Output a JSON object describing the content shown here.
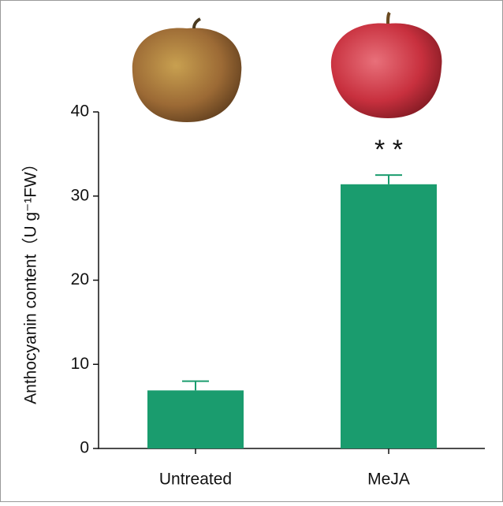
{
  "chart_data": {
    "type": "bar",
    "y_label": "Anthocyanin content（U g⁻¹FW）",
    "categories": [
      "Untreated",
      "MeJA"
    ],
    "values": [
      6.9,
      31.4
    ],
    "errors": [
      1.1,
      1.1
    ],
    "color": "#1a9c6e",
    "annotations": [
      null,
      "* *"
    ],
    "ylim": [
      0,
      40
    ],
    "yticks": [
      0,
      10,
      20,
      30,
      40
    ]
  }
}
